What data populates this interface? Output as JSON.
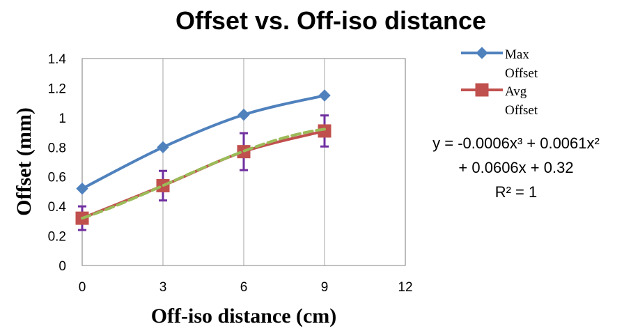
{
  "chart_data": {
    "type": "line",
    "title": "Offset vs. Off-iso distance",
    "xlabel": "Off-iso distance (cm)",
    "ylabel": "Offset (mm)",
    "xlim": [
      0,
      12
    ],
    "ylim": [
      0,
      1.4
    ],
    "xticks": [
      "0",
      "3",
      "6",
      "9",
      "12"
    ],
    "yticks": [
      "0",
      "0.2",
      "0.4",
      "0.6",
      "0.8",
      "1",
      "1.2",
      "1.4"
    ],
    "grid": "vertical",
    "legend_position": "top-right",
    "x": [
      0,
      3,
      6,
      9
    ],
    "series": [
      {
        "name_lines": [
          "Max",
          "Offset"
        ],
        "color": "#4f81bd",
        "marker": "diamond",
        "values": [
          0.52,
          0.8,
          1.02,
          1.15
        ]
      },
      {
        "name_lines": [
          "Avg",
          "Offset"
        ],
        "color": "#c0504d",
        "marker": "square",
        "values": [
          0.32,
          0.54,
          0.77,
          0.91
        ],
        "error": [
          0.08,
          0.1,
          0.125,
          0.105
        ],
        "error_color": "#7030a0"
      }
    ],
    "trendline": {
      "type": "polynomial",
      "order": 3,
      "color": "#9bbb59",
      "coefficients": [
        -0.0006,
        0.0061,
        0.0606,
        0.32
      ],
      "equation_lines": [
        "y = -0.0006x³ + 0.0061x²",
        "+ 0.0606x + 0.32",
        "R² = 1"
      ]
    }
  }
}
